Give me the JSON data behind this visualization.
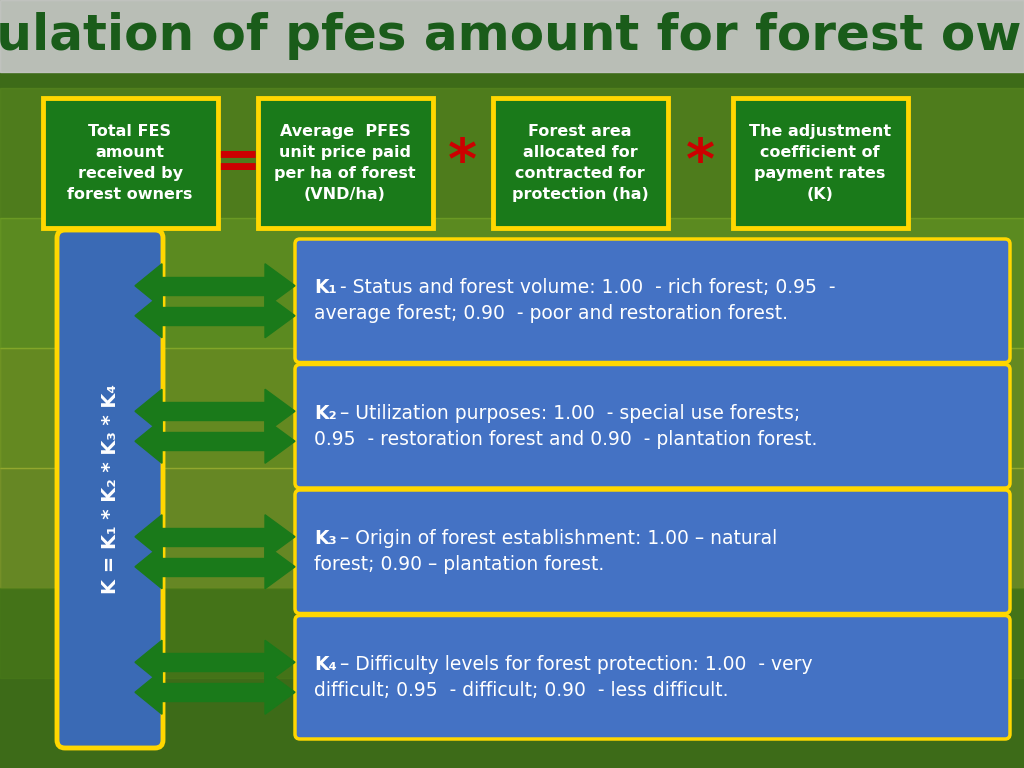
{
  "title": "Calculation of pfes amount for forest owners",
  "title_color": "#1a5c1a",
  "title_bg_color": "#c8c8c8",
  "title_fontsize": 36,
  "bg_color": "#4a7520",
  "box_bg_color": "#1a7a1a",
  "box_border_color": "#ffd700",
  "operator_color": "#cc0000",
  "top_boxes": [
    "Total FES\namount\nreceived by\nforest owners",
    "Average  PFES\nunit price paid\nper ha of forest\n(VND/ha)",
    "Forest area\nallocated for\ncontracted for\nprotection (ha)",
    "The adjustment\ncoefficient of\npayment rates\n(K)"
  ],
  "operators": [
    "=",
    "*",
    "*"
  ],
  "k_formula_text": "K = K₁ * K₂ * K₃ * K₄",
  "k_panel_color": "#3a6ab5",
  "k_box_color": "#4472c4",
  "k_border_color": "#ffd700",
  "arrow_color": "#1a7a1a",
  "k_items": [
    {
      "key": "K₁",
      "sep": " - ",
      "line1": "Status and forest volume: 1.00  - rich forest; 0.95  -",
      "line2": "average forest; 0.90  - poor and restoration forest."
    },
    {
      "key": "K₂",
      "sep": " – ",
      "line1": "Utilization purposes: 1.00  - special use forests;",
      "line2": "0.95  - restoration forest and 0.90  - plantation forest."
    },
    {
      "key": "K₃",
      "sep": " – ",
      "line1": "Origin of forest establishment: 1.00 – natural",
      "line2": "forest; 0.90 – plantation forest."
    },
    {
      "key": "K₄",
      "sep": " – ",
      "line1": "Difficulty levels for forest protection: 1.00  - very",
      "line2": "difficult; 0.95  - difficult; 0.90  - less difficult."
    }
  ]
}
